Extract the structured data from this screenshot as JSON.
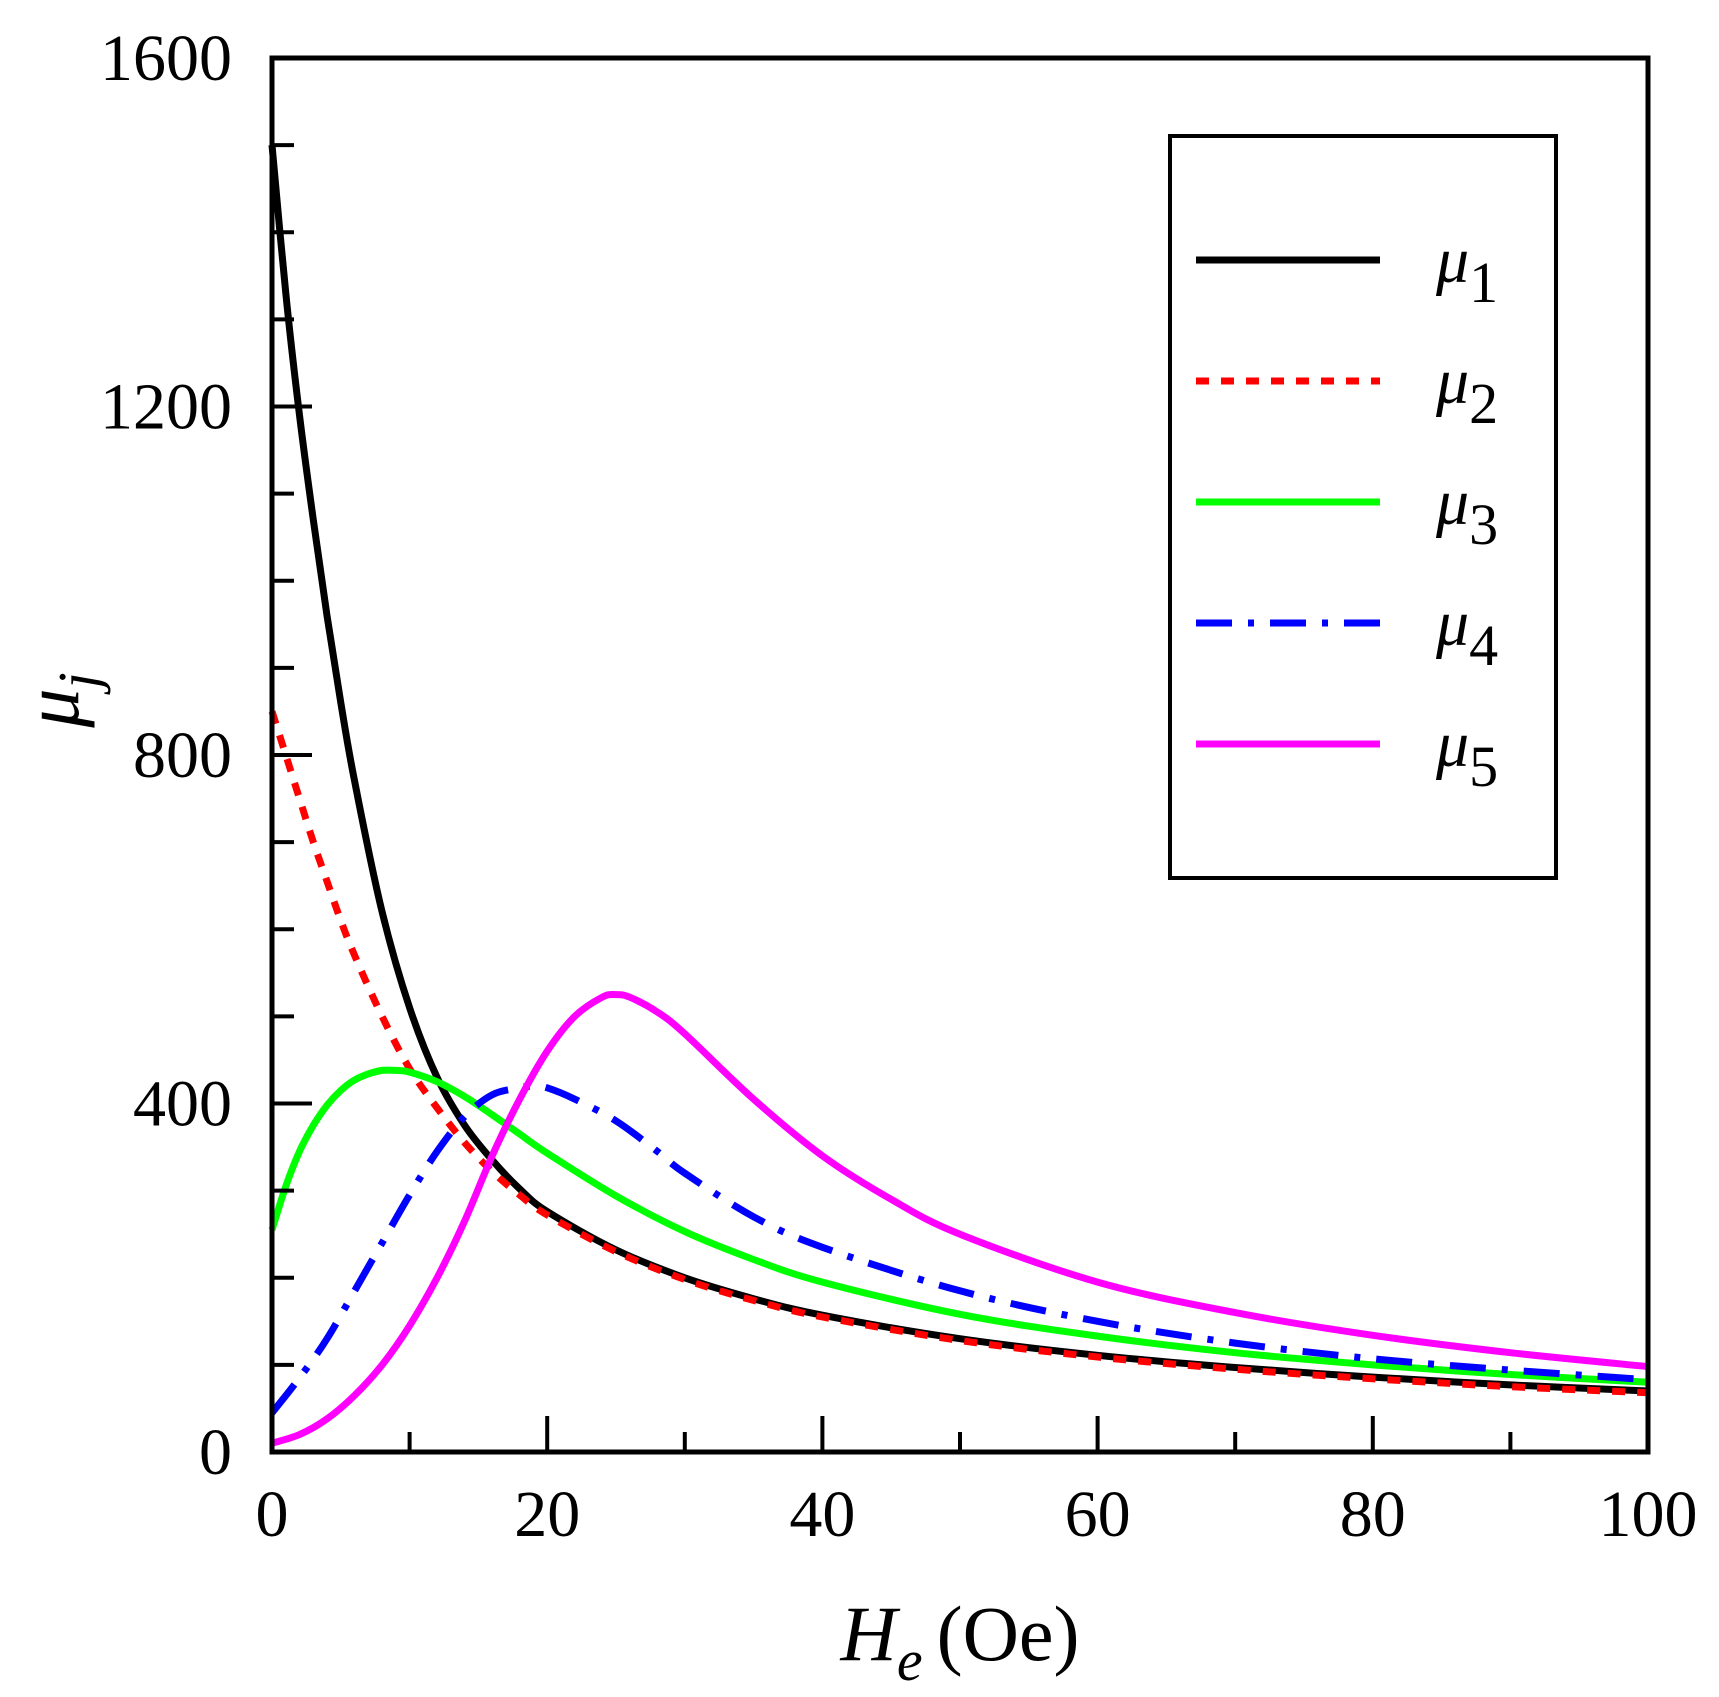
{
  "chart_data": {
    "type": "line",
    "title": "",
    "xlabel": {
      "main": "H",
      "sub": "e",
      "unit": "(Oe)"
    },
    "ylabel": {
      "main": "μ",
      "sub": "j"
    },
    "xlim": [
      0,
      100
    ],
    "ylim": [
      0,
      1600
    ],
    "x_ticks": [
      0,
      20,
      40,
      60,
      80,
      100
    ],
    "x_tick_labels": [
      "0",
      "20",
      "40",
      "60",
      "80",
      "100"
    ],
    "y_ticks": [
      0,
      400,
      800,
      1200,
      1600
    ],
    "y_tick_labels": [
      "0",
      "400",
      "800",
      "1200",
      "1600"
    ],
    "x_minor_step": 10,
    "y_minor_step": 100,
    "grid": false,
    "legend_position": "top-right",
    "series": [
      {
        "name": "μ1",
        "main": "μ",
        "sub": "1",
        "color": "#000000",
        "dash": "solid",
        "x": [
          0,
          1,
          2,
          3,
          4,
          5,
          6,
          8,
          10,
          12,
          14,
          16,
          18,
          20,
          25,
          30,
          35,
          40,
          50,
          60,
          70,
          80,
          90,
          100
        ],
        "y": [
          1500,
          1330,
          1190,
          1070,
          960,
          860,
          770,
          620,
          510,
          430,
          375,
          335,
          302,
          276,
          232,
          200,
          176,
          157,
          130,
          111,
          97,
          86,
          77,
          70
        ]
      },
      {
        "name": "μ2",
        "main": "μ",
        "sub": "2",
        "color": "#ff0000",
        "dash": "dotted",
        "x": [
          0,
          1,
          2,
          3,
          4,
          5,
          6,
          8,
          10,
          12,
          14,
          16,
          18,
          20,
          25,
          30,
          35,
          40,
          50,
          60,
          70,
          80,
          90,
          100
        ],
        "y": [
          850,
          800,
          750,
          700,
          655,
          610,
          570,
          500,
          440,
          395,
          355,
          322,
          295,
          272,
          230,
          198,
          174,
          155,
          128,
          109,
          95,
          84,
          75,
          68
        ]
      },
      {
        "name": "μ3",
        "main": "μ",
        "sub": "3",
        "color": "#00ff00",
        "dash": "solid",
        "x": [
          0,
          1,
          2,
          3,
          4,
          5,
          6,
          7,
          8,
          9,
          10,
          12,
          14,
          16,
          18,
          20,
          25,
          30,
          35,
          40,
          50,
          60,
          70,
          80,
          90,
          100
        ],
        "y": [
          255,
          305,
          345,
          375,
          398,
          415,
          427,
          434,
          438,
          438,
          436,
          425,
          408,
          387,
          365,
          343,
          294,
          253,
          221,
          195,
          158,
          133,
          114,
          100,
          89,
          80
        ]
      },
      {
        "name": "μ4",
        "main": "μ",
        "sub": "4",
        "color": "#0000ff",
        "dash": "dashdot",
        "x": [
          0,
          2,
          4,
          6,
          8,
          10,
          12,
          14,
          16,
          18,
          19,
          20,
          22,
          25,
          28,
          30,
          35,
          40,
          50,
          60,
          70,
          80,
          90,
          100
        ],
        "y": [
          45,
          85,
          130,
          185,
          240,
          295,
          345,
          385,
          410,
          418,
          420,
          418,
          405,
          380,
          345,
          320,
          270,
          235,
          185,
          150,
          125,
          107,
          94,
          83
        ]
      },
      {
        "name": "μ5",
        "main": "μ",
        "sub": "5",
        "color": "#ff00ff",
        "dash": "solid",
        "x": [
          0,
          2,
          4,
          6,
          8,
          10,
          12,
          14,
          16,
          18,
          20,
          22,
          24,
          25,
          26,
          28,
          30,
          35,
          40,
          45,
          50,
          60,
          70,
          80,
          90,
          100
        ],
        "y": [
          10,
          20,
          38,
          65,
          100,
          145,
          200,
          265,
          340,
          405,
          460,
          500,
          522,
          525,
          522,
          505,
          480,
          405,
          340,
          290,
          250,
          195,
          160,
          134,
          114,
          98
        ]
      }
    ]
  }
}
